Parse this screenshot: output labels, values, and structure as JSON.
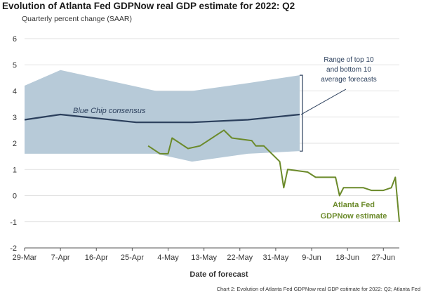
{
  "header": {
    "title": "Evolution of Atlanta Fed GDPNow real GDP estimate for 2022: Q2",
    "subtitle": "Quarterly percent change (SAAR)"
  },
  "caption": "Chart 2: Evolution of Atlanta Fed GDPNow real GDP estimate for 2022: Q2; Atlanta Fed",
  "chart_data": {
    "type": "line",
    "title": "Evolution of Atlanta Fed GDPNow real GDP estimate for 2022: Q2",
    "subtitle": "Quarterly percent change (SAAR)",
    "xlabel": "Date of forecast",
    "ylabel": "",
    "ylim": [
      -2,
      6
    ],
    "yticks": [
      -2,
      -1,
      0,
      1,
      2,
      3,
      4,
      5,
      6
    ],
    "xlim": [
      "2022-03-29",
      "2022-07-01"
    ],
    "xticks": [
      {
        "date": "2022-03-29",
        "label": "29-Mar"
      },
      {
        "date": "2022-04-07",
        "label": "7-Apr"
      },
      {
        "date": "2022-04-16",
        "label": "16-Apr"
      },
      {
        "date": "2022-04-25",
        "label": "25-Apr"
      },
      {
        "date": "2022-05-04",
        "label": "4-May"
      },
      {
        "date": "2022-05-13",
        "label": "13-May"
      },
      {
        "date": "2022-05-22",
        "label": "22-May"
      },
      {
        "date": "2022-05-31",
        "label": "31-May"
      },
      {
        "date": "2022-06-09",
        "label": "9-Jun"
      },
      {
        "date": "2022-06-18",
        "label": "18-Jun"
      },
      {
        "date": "2022-06-27",
        "label": "27-Jun"
      }
    ],
    "grid": true,
    "range_band": {
      "x": [
        "2022-03-29",
        "2022-04-07",
        "2022-05-01",
        "2022-05-10",
        "2022-05-24",
        "2022-06-06"
      ],
      "upper": [
        4.2,
        4.8,
        4.0,
        4.0,
        4.3,
        4.6
      ],
      "lower": [
        1.6,
        1.6,
        1.6,
        1.3,
        1.6,
        1.7
      ],
      "color": "#b7cad8"
    },
    "series": [
      {
        "name": "Blue Chip consensus",
        "color": "#2b3f5c",
        "x": [
          "2022-03-29",
          "2022-04-07",
          "2022-04-26",
          "2022-05-10",
          "2022-05-24",
          "2022-06-06"
        ],
        "y": [
          2.9,
          3.1,
          2.8,
          2.8,
          2.9,
          3.1
        ]
      },
      {
        "name": "Atlanta Fed GDPNow estimate",
        "color": "#6b8a2a",
        "x": [
          "2022-04-29",
          "2022-05-02",
          "2022-05-04",
          "2022-05-05",
          "2022-05-09",
          "2022-05-12",
          "2022-05-14",
          "2022-05-18",
          "2022-05-20",
          "2022-05-25",
          "2022-05-26",
          "2022-05-28",
          "2022-06-01",
          "2022-06-02",
          "2022-06-03",
          "2022-06-08",
          "2022-06-10",
          "2022-06-15",
          "2022-06-16",
          "2022-06-17",
          "2022-06-22",
          "2022-06-24",
          "2022-06-27",
          "2022-06-29",
          "2022-06-30",
          "2022-07-01"
        ],
        "y": [
          1.9,
          1.6,
          1.6,
          2.2,
          1.8,
          1.9,
          2.1,
          2.5,
          2.2,
          2.1,
          1.9,
          1.9,
          1.3,
          0.3,
          1.0,
          0.9,
          0.7,
          0.7,
          0.0,
          0.3,
          0.3,
          0.2,
          0.2,
          0.3,
          0.7,
          -1.0
        ]
      }
    ],
    "annotations": {
      "range_label": [
        "Range of top 10",
        "and bottom 10",
        "average forecasts"
      ],
      "blue_chip_label": "Blue Chip consensus",
      "gdpnow_label": [
        "Atlanta Fed",
        "GDPNow estimate"
      ]
    }
  }
}
